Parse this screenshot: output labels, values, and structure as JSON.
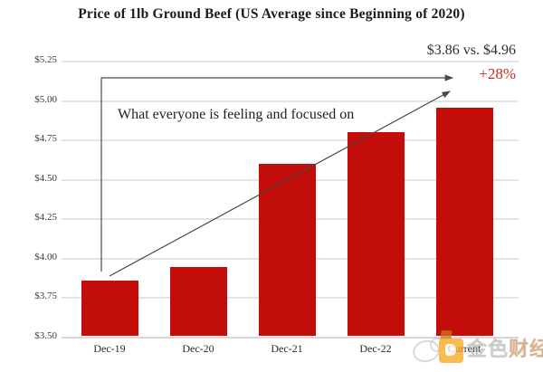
{
  "chart_data": {
    "type": "bar",
    "title": "Price of 1lb Ground Beef (US Average since Beginning of 2020)",
    "categories": [
      "Dec-19",
      "Dec-20",
      "Dec-21",
      "Dec-22",
      "Current"
    ],
    "values": [
      3.86,
      3.95,
      4.6,
      4.8,
      4.96
    ],
    "y_ticks": [
      {
        "label": "$3.50",
        "value": 3.5
      },
      {
        "label": "$3.75",
        "value": 3.75
      },
      {
        "label": "$4.00",
        "value": 4.0
      },
      {
        "label": "$4.25",
        "value": 4.25
      },
      {
        "label": "$4.50",
        "value": 4.5
      },
      {
        "label": "$4.75",
        "value": 4.75
      },
      {
        "label": "$5.00",
        "value": 5.0
      },
      {
        "label": "$5.25",
        "value": 5.25
      }
    ],
    "ylim": [
      3.5,
      5.25
    ],
    "xlabel": "",
    "ylabel": "",
    "grid": true,
    "legend": "none",
    "bar_color": "#C20D0A"
  },
  "annotations": {
    "feeling": "What everyone is feeling and focused on",
    "comparison": "$3.86 vs. $4.96",
    "percent_change": "+28%",
    "percent_color": "#CB2A1E",
    "arrow_color": "#4A4A4A"
  },
  "watermark": {
    "text_gold": "金色",
    "text_accent": "财经"
  }
}
